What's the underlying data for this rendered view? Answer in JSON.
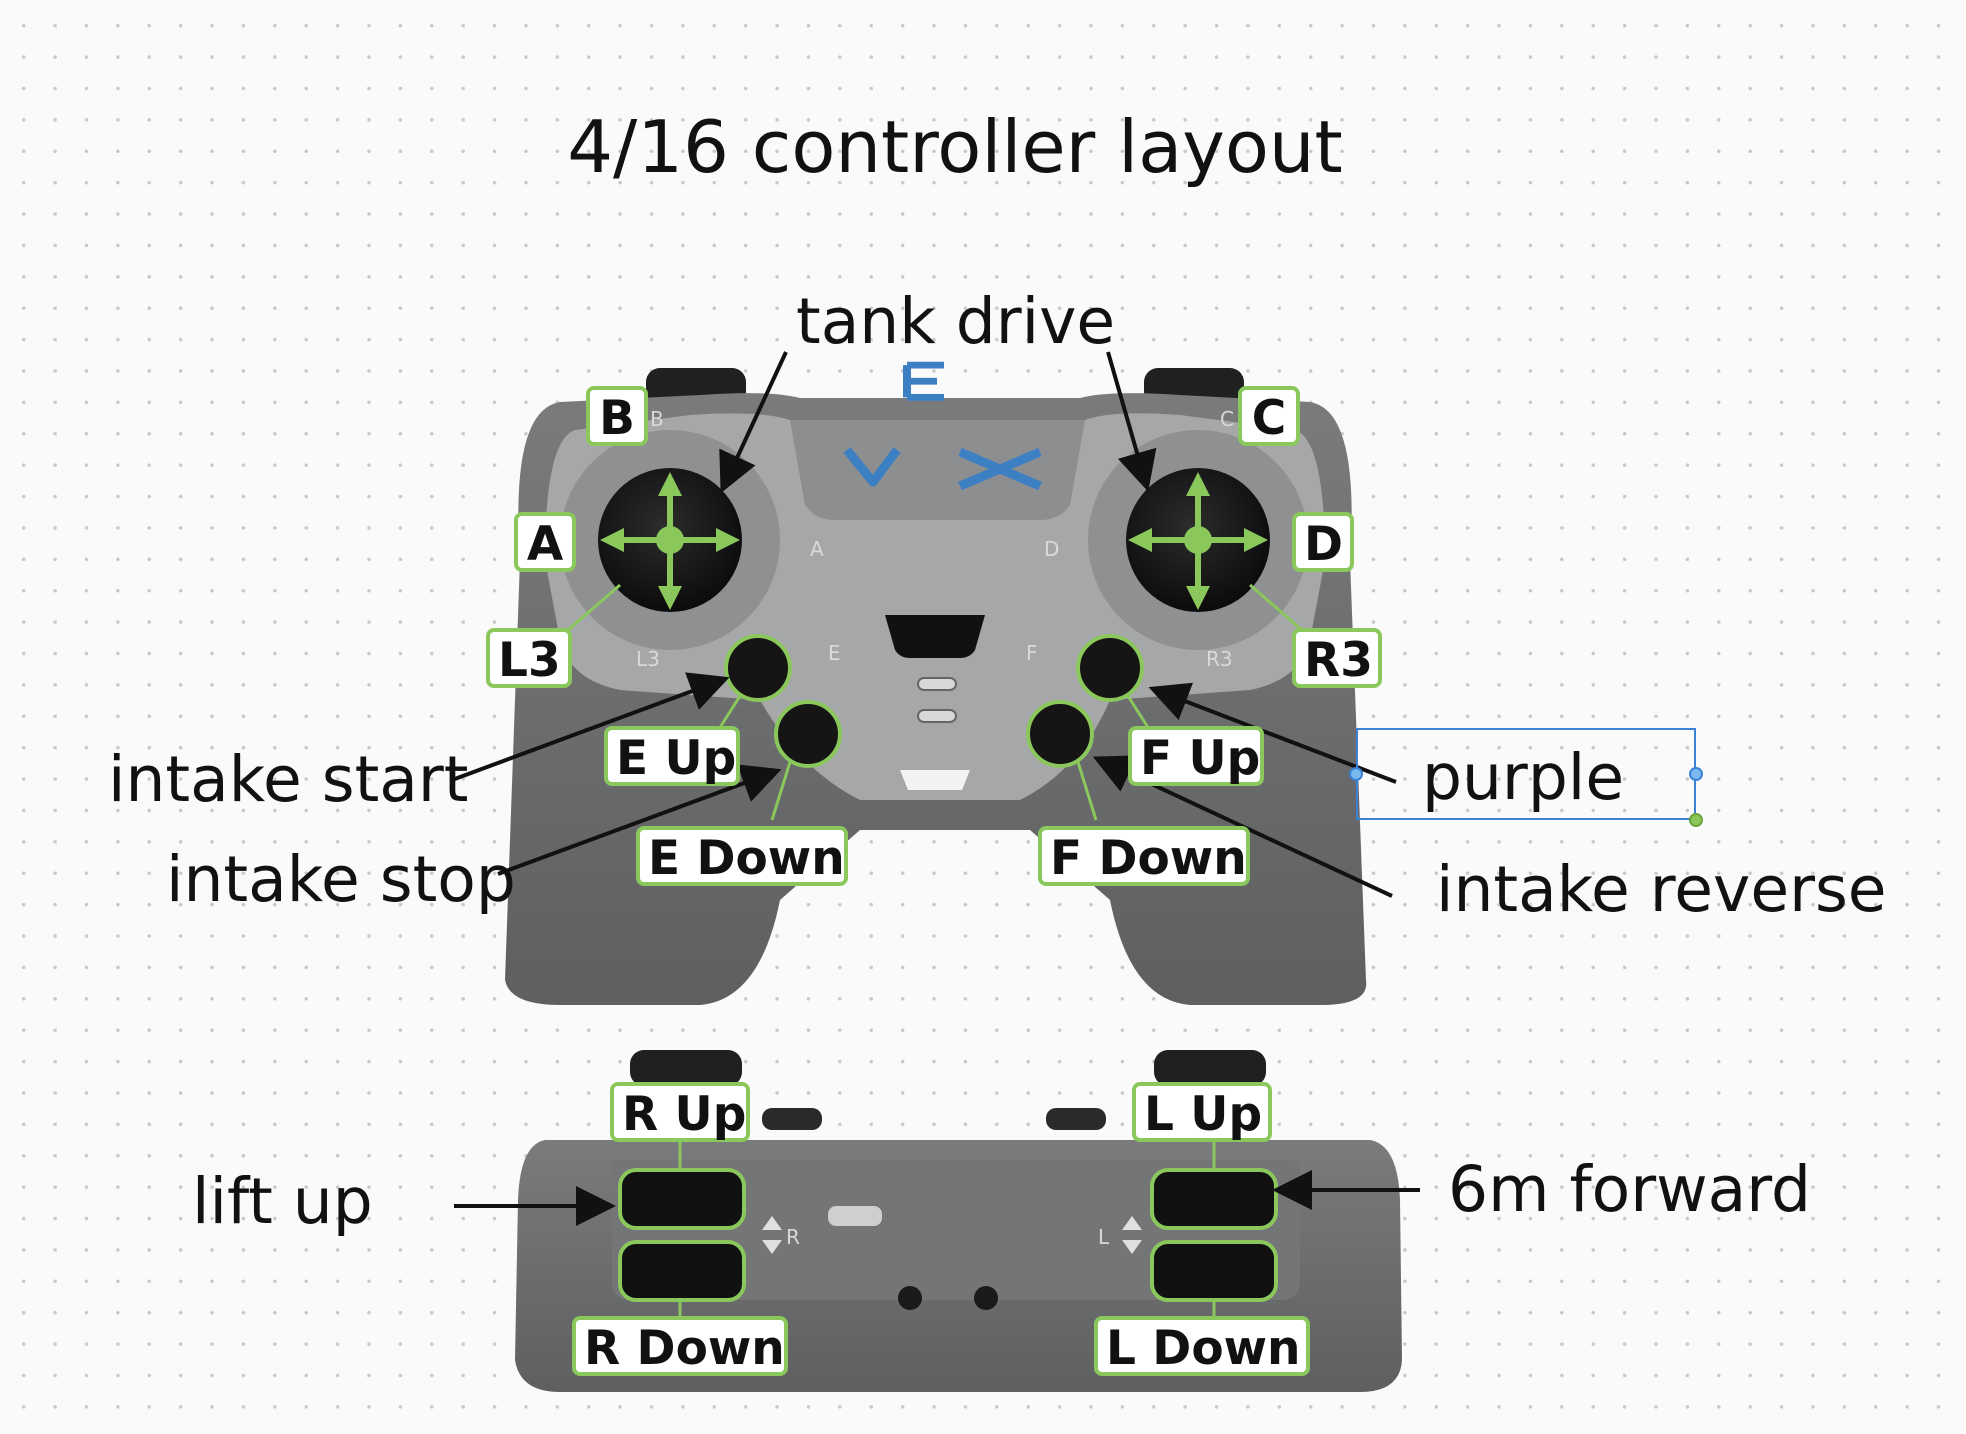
{
  "diagram": {
    "title": "4/16 controller layout",
    "logo_text": "VEX",
    "controller_front": {
      "button_labels": {
        "b": "B",
        "a": "A",
        "l3": "L3",
        "c": "C",
        "d": "D",
        "r3": "R3",
        "e_up": "E Up",
        "e_down": "E Down",
        "f_up": "F Up",
        "f_down": "F Down"
      },
      "printed_marks": {
        "b": "B",
        "a": "A",
        "c": "C",
        "d": "D",
        "e": "E",
        "f": "F",
        "l3": "L3",
        "r3": "R3"
      }
    },
    "controller_back": {
      "button_labels": {
        "r_up": "R Up",
        "r_down": "R Down",
        "l_up": "L Up",
        "l_down": "L Down"
      },
      "printed_marks": {
        "r": "R",
        "l": "L"
      }
    },
    "annotations": {
      "tank_drive": "tank drive",
      "intake_start": "intake start",
      "intake_stop": "intake stop",
      "purple": "purple",
      "intake_reverse": "intake reverse",
      "lift_up": "lift up",
      "six_m_forward": "6m forward"
    },
    "colors": {
      "label_border": "#8ac85c",
      "arrow_marker": "#8ac85c",
      "controller_body": "#6b6c6e",
      "controller_face": "#a6a7a9",
      "logo": "#3d7fc3",
      "selection": "#3b82d6"
    }
  }
}
